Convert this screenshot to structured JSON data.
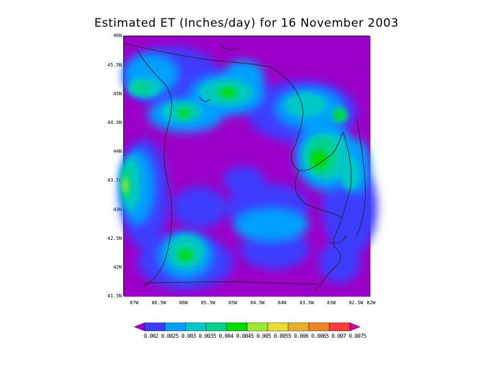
{
  "title": "Estimated ET (Inches/day) for 16 November 2003",
  "lat_labels": [
    "46N",
    "45.5N",
    "45N",
    "44.5N",
    "44N",
    "43.5N",
    "43N",
    "42.5N",
    "42N",
    "41.5N"
  ],
  "lon_labels": [
    "87W",
    "86.5W",
    "86W",
    "85.5W",
    "85W",
    "84.5W",
    "84W",
    "83.5W",
    "83W",
    "82.5W",
    "82W"
  ],
  "colorbar": {
    "labels_text": "0.002 0.0025 0.003 0.0035 0.004 0.0045 0.005 0.0055 0.006 0.0065 0.007 0.0075",
    "colors": [
      "#9c00c8",
      "#3c3cff",
      "#00a0ff",
      "#00c8c8",
      "#00d28c",
      "#00dc00",
      "#a0e632",
      "#e6dc32",
      "#e6af2d",
      "#f08228",
      "#fa3c3c",
      "#d20096"
    ]
  },
  "map": {
    "background_color": "#9c00c8",
    "region": "Michigan Lower Peninsula, 41.5N–46N, 82W–87W"
  }
}
